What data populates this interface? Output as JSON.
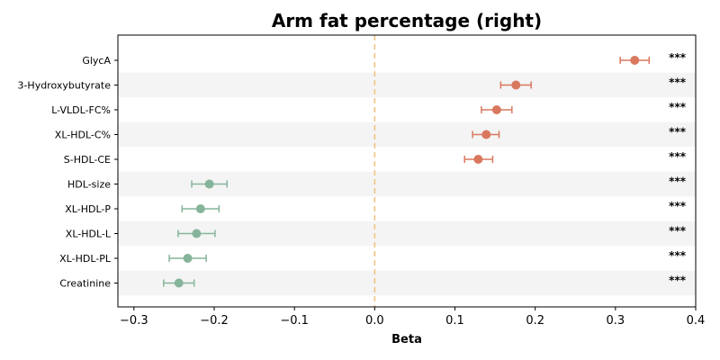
{
  "chart_data": {
    "type": "forest",
    "title": "Arm fat percentage (right)",
    "xlabel": "Beta",
    "ylabel": "",
    "xlim": [
      -0.32,
      0.4
    ],
    "xticks": [
      -0.3,
      -0.2,
      -0.1,
      0.0,
      0.1,
      0.2,
      0.3,
      0.4
    ],
    "xtick_labels": [
      "−0.3",
      "−0.2",
      "−0.1",
      "0.0",
      "0.1",
      "0.2",
      "0.3",
      "0.4"
    ],
    "reference_line": 0.0,
    "colors": {
      "positive": "#d9785f",
      "negative": "#86b49a",
      "reference": "#f0c27b",
      "band": "#f4f4f4"
    },
    "rows": [
      {
        "label": "GlycA",
        "beta": 0.324,
        "ci_low": 0.306,
        "ci_high": 0.342,
        "sig": "***"
      },
      {
        "label": "3-Hydroxybutyrate",
        "beta": 0.176,
        "ci_low": 0.157,
        "ci_high": 0.195,
        "sig": "***"
      },
      {
        "label": "L-VLDL-FC%",
        "beta": 0.152,
        "ci_low": 0.133,
        "ci_high": 0.171,
        "sig": "***"
      },
      {
        "label": "XL-HDL-C%",
        "beta": 0.139,
        "ci_low": 0.122,
        "ci_high": 0.155,
        "sig": "***"
      },
      {
        "label": "S-HDL-CE",
        "beta": 0.129,
        "ci_low": 0.112,
        "ci_high": 0.147,
        "sig": "***"
      },
      {
        "label": "HDL-size",
        "beta": -0.206,
        "ci_low": -0.228,
        "ci_high": -0.184,
        "sig": "***"
      },
      {
        "label": "XL-HDL-P",
        "beta": -0.217,
        "ci_low": -0.24,
        "ci_high": -0.194,
        "sig": "***"
      },
      {
        "label": "XL-HDL-L",
        "beta": -0.222,
        "ci_low": -0.245,
        "ci_high": -0.199,
        "sig": "***"
      },
      {
        "label": "XL-HDL-PL",
        "beta": -0.233,
        "ci_low": -0.256,
        "ci_high": -0.21,
        "sig": "***"
      },
      {
        "label": "Creatinine",
        "beta": -0.244,
        "ci_low": -0.263,
        "ci_high": -0.225,
        "sig": "***"
      }
    ]
  }
}
